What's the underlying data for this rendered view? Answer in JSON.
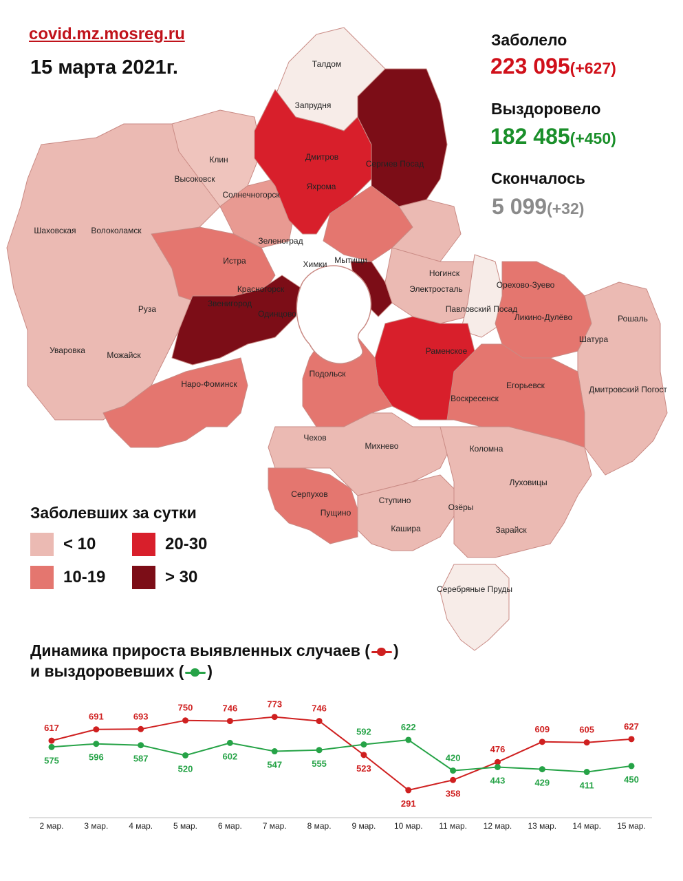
{
  "header": {
    "source": "covid.mz.mosreg.ru",
    "date": "15 марта 2021г."
  },
  "stats": {
    "infected": {
      "label": "Заболело",
      "value": "223 095",
      "delta": "(+627)",
      "color": "#d0101a"
    },
    "recovered": {
      "label": "Выздоровело",
      "value": "182 485",
      "delta": "(+450)",
      "color": "#1a8f2a"
    },
    "deceased": {
      "label": "Скончалось",
      "value": "5 099",
      "delta": "(+32)",
      "color": "#8a8a8a"
    }
  },
  "map": {
    "cities": [
      "Талдом",
      "Запрудня",
      "Дмитров",
      "Яхрома",
      "Сергиев Посад",
      "Клин",
      "Высоковск",
      "Солнечногорск",
      "Шаховская",
      "Волоколамск",
      "Зеленоград",
      "Истра",
      "Мытищи",
      "Химки",
      "Ногинск",
      "Электросталь",
      "Орехово-Зуево",
      "Красногорск",
      "Звенигород",
      "Одинцово",
      "Павловский Посад",
      "Ликино-Дулёво",
      "Рошаль",
      "Руза",
      "Шатура",
      "Уваровка",
      "Можайск",
      "Раменское",
      "Подольск",
      "Наро-Фоминск",
      "Егорьевск",
      "Воскресенск",
      "Дмитровский Погост",
      "Чехов",
      "Михнево",
      "Коломна",
      "Луховицы",
      "Серпухов",
      "Пущино",
      "Ступино",
      "Озёры",
      "Кашира",
      "Зарайск",
      "Серебряные Пруды"
    ]
  },
  "legend": {
    "title": "Заболевших за сутки",
    "items": [
      {
        "label": "< 10",
        "color": "#ebbab3"
      },
      {
        "label": "10-19",
        "color": "#e4766f"
      },
      {
        "label": "20-30",
        "color": "#d81f2b"
      },
      {
        "label": "> 30",
        "color": "#7c0d17"
      }
    ]
  },
  "chart_titles": {
    "line1_text": "Динамика прироста выявленных случаев (",
    "line1_end": ")",
    "line2_text": "и выздоровевших (",
    "line2_end": ")"
  },
  "chart_data": {
    "type": "line",
    "title": "Динамика прироста выявленных случаев и выздоровевших",
    "categories": [
      "2 мар.",
      "3 мар.",
      "4 мар.",
      "5 мар.",
      "6 мар.",
      "7 мар.",
      "8 мар.",
      "9 мар.",
      "10 мар.",
      "11 мар.",
      "12 мар.",
      "13 мар.",
      "14 мар.",
      "15 мар."
    ],
    "series": [
      {
        "key": "cases",
        "color": "#cf2020",
        "values": [
          617,
          691,
          693,
          750,
          746,
          773,
          746,
          523,
          291,
          358,
          476,
          609,
          605,
          627
        ]
      },
      {
        "key": "recovered",
        "color": "#26a347",
        "values": [
          575,
          596,
          587,
          520,
          602,
          547,
          555,
          592,
          622,
          420,
          443,
          429,
          411,
          450
        ]
      }
    ],
    "grid": false,
    "legend": "inline-title"
  }
}
